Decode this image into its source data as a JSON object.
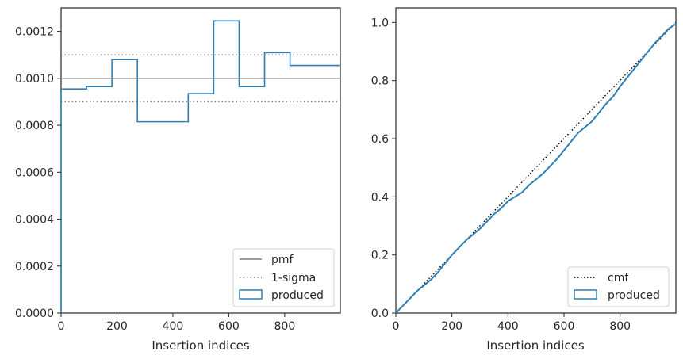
{
  "colors": {
    "produced": "#2f7fb5",
    "pmf": "#7f7f7f",
    "sigma": "#7f7f7f",
    "cmf": "#000000",
    "axis": "#262626"
  },
  "chart_data": [
    {
      "type": "step",
      "xlabel": "Insertion indices",
      "ylabel": "",
      "xlim": [
        0,
        999
      ],
      "ylim": [
        0,
        0.0013
      ],
      "x_ticks": [
        0,
        200,
        400,
        600,
        800
      ],
      "x_tick_labels": [
        "0",
        "200",
        "400",
        "600",
        "800"
      ],
      "y_ticks": [
        0,
        0.0002,
        0.0004,
        0.0006,
        0.0008,
        0.001,
        0.0012
      ],
      "y_tick_labels": [
        "0.0000",
        "0.0002",
        "0.0004",
        "0.0006",
        "0.0008",
        "0.0010",
        "0.0012"
      ],
      "reference_lines": [
        {
          "name": "pmf",
          "y": 0.001,
          "style": "solid"
        },
        {
          "name": "1-sigma",
          "y": 0.0011,
          "style": "dotted"
        },
        {
          "name": "1-sigma",
          "y": 0.0009,
          "style": "dotted"
        }
      ],
      "series": [
        {
          "name": "produced",
          "bin_edges": [
            0,
            91,
            182,
            273,
            364,
            455,
            546,
            637,
            728,
            819,
            910,
            999
          ],
          "values": [
            0.000955,
            0.000965,
            0.00108,
            0.000815,
            0.000815,
            0.000935,
            0.001245,
            0.000965,
            0.00111,
            0.001055,
            0.001055
          ]
        }
      ],
      "legend": {
        "position": "lower right",
        "entries": [
          "pmf",
          "1-sigma",
          "produced"
        ]
      },
      "grid": false
    },
    {
      "type": "line",
      "xlabel": "Insertion indices",
      "ylabel": "",
      "xlim": [
        0,
        999
      ],
      "ylim": [
        0,
        1.05
      ],
      "x_ticks": [
        0,
        200,
        400,
        600,
        800
      ],
      "x_tick_labels": [
        "0",
        "200",
        "400",
        "600",
        "800"
      ],
      "y_ticks": [
        0,
        0.2,
        0.4,
        0.6,
        0.8,
        1.0
      ],
      "y_tick_labels": [
        "0.0",
        "0.2",
        "0.4",
        "0.6",
        "0.8",
        "1.0"
      ],
      "series": [
        {
          "name": "cmf",
          "x": [
            0,
            999
          ],
          "y": [
            0,
            1.0
          ],
          "style": "dotted"
        },
        {
          "name": "produced",
          "x": [
            0,
            25,
            50,
            75,
            100,
            125,
            150,
            175,
            200,
            225,
            250,
            275,
            300,
            325,
            350,
            375,
            400,
            425,
            450,
            475,
            500,
            525,
            550,
            575,
            600,
            625,
            650,
            675,
            700,
            725,
            750,
            775,
            800,
            825,
            850,
            875,
            900,
            925,
            950,
            975,
            999
          ],
          "y": [
            0,
            0.025,
            0.05,
            0.075,
            0.095,
            0.115,
            0.14,
            0.17,
            0.2,
            0.225,
            0.25,
            0.27,
            0.29,
            0.315,
            0.34,
            0.36,
            0.385,
            0.4,
            0.415,
            0.44,
            0.46,
            0.48,
            0.505,
            0.53,
            0.56,
            0.59,
            0.62,
            0.64,
            0.66,
            0.69,
            0.72,
            0.745,
            0.78,
            0.81,
            0.84,
            0.87,
            0.9,
            0.93,
            0.955,
            0.98,
            0.995
          ]
        }
      ],
      "legend": {
        "position": "lower right",
        "entries": [
          "cmf",
          "produced"
        ]
      },
      "grid": false
    }
  ]
}
